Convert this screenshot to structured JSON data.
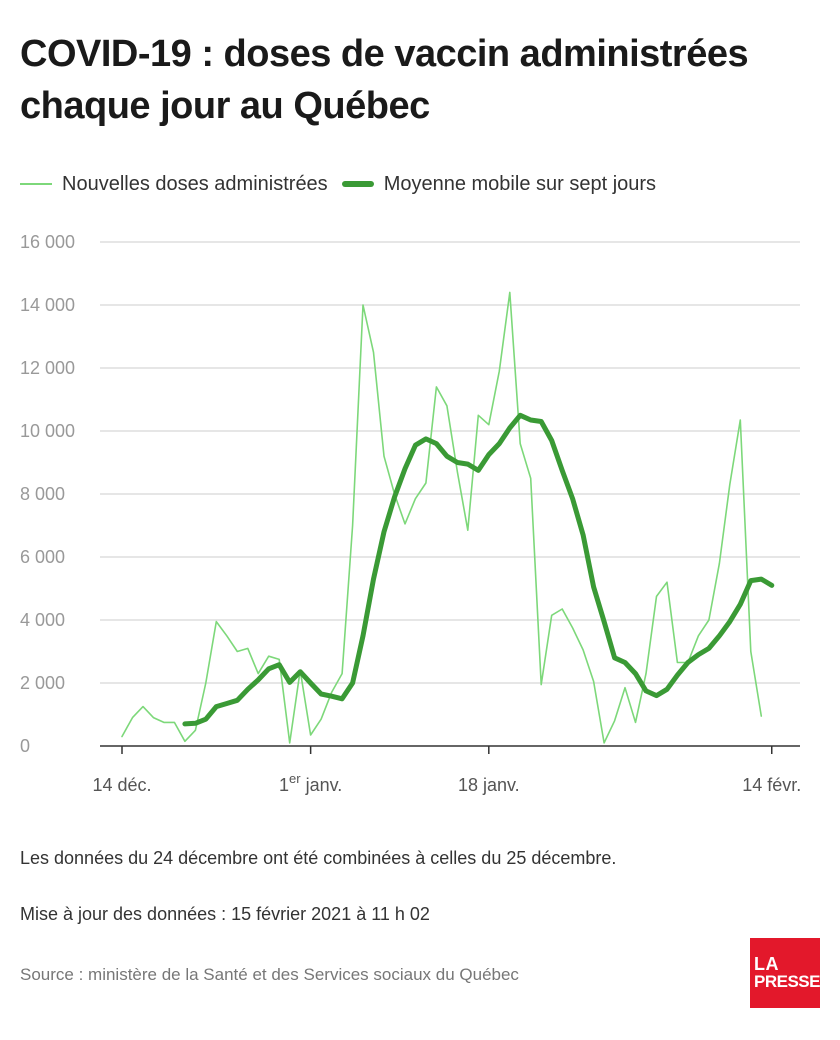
{
  "title": "COVID-19 : doses de vaccin administrées chaque jour au Québec",
  "legend": {
    "daily": "Nouvelles doses administrées",
    "average": "Moyenne mobile sur sept jours"
  },
  "colors": {
    "daily": "#7dd87a",
    "average": "#3a9a35",
    "grid": "#dddddd",
    "axis": "#333333",
    "brand": "#e3182b"
  },
  "chart_data": {
    "type": "line",
    "x_start": "2020-12-14",
    "ylim": [
      0,
      16000
    ],
    "y_ticks": [
      0,
      2000,
      4000,
      6000,
      8000,
      10000,
      12000,
      14000,
      16000
    ],
    "y_tick_labels": [
      "0",
      "2 000",
      "4 000",
      "6 000",
      "8 000",
      "10 000",
      "12 000",
      "14 000",
      "16 000"
    ],
    "x_ticks": [
      {
        "day": 0,
        "label": "14 déc.",
        "sup": ""
      },
      {
        "day": 18,
        "label": "1",
        "sup": "er",
        "rest": " janv."
      },
      {
        "day": 35,
        "label": "18 janv.",
        "sup": ""
      },
      {
        "day": 62,
        "label": "14 févr.",
        "sup": ""
      }
    ],
    "series": [
      {
        "name": "Nouvelles doses administrées",
        "start_day": 0,
        "values": [
          300,
          900,
          1250,
          900,
          750,
          750,
          150,
          500,
          2000,
          3950,
          3500,
          3000,
          3100,
          2300,
          2850,
          2750,
          100,
          2400,
          350,
          850,
          1700,
          2300,
          7000,
          14000,
          12500,
          9200,
          8000,
          7050,
          7850,
          8350,
          11400,
          10800,
          8700,
          6850,
          10500,
          10200,
          11900,
          14400,
          9600,
          8500,
          1950,
          4150,
          4350,
          3750,
          3050,
          2050,
          100,
          800,
          1850,
          750,
          2300,
          4750,
          5200,
          2650,
          2650,
          3500,
          4000,
          5800,
          8300,
          10350,
          3000,
          950
        ]
      },
      {
        "name": "Moyenne mobile sur sept jours",
        "start_day": 6,
        "values": [
          700,
          720,
          850,
          1250,
          1350,
          1450,
          1800,
          2100,
          2450,
          2580,
          2020,
          2360,
          2000,
          1650,
          1580,
          1500,
          2000,
          3500,
          5300,
          6800,
          7900,
          8800,
          9550,
          9750,
          9600,
          9200,
          9000,
          8950,
          8750,
          9250,
          9600,
          10100,
          10500,
          10350,
          10300,
          9700,
          8750,
          7850,
          6700,
          5050,
          3950,
          2800,
          2650,
          2300,
          1750,
          1600,
          1800,
          2250,
          2650,
          2900,
          3100,
          3500,
          3950,
          4500,
          5250,
          5300,
          5100
        ]
      }
    ]
  },
  "notes": {
    "combined": "Les données du 24 décembre ont été combinées à celles du 25 décembre.",
    "updated": "Mise à jour des données : 15 février 2021 à 11 h 02"
  },
  "source": "Source : ministère de la Santé et des Services sociaux du Québec",
  "logo": {
    "line1": "LA",
    "line2": "PRESSE"
  }
}
